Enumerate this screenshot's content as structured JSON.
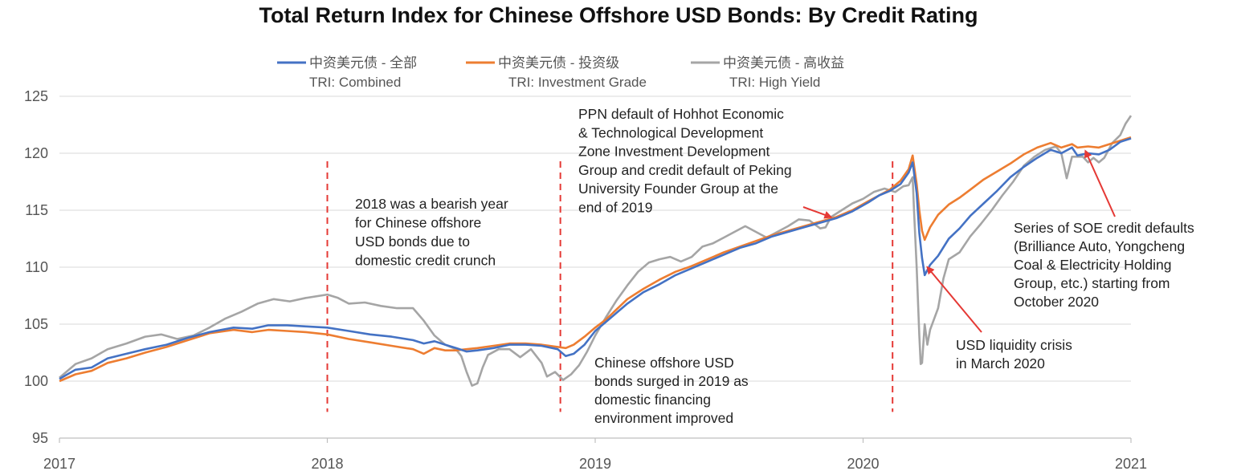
{
  "chart_data": {
    "type": "line",
    "title": "Total Return Index for Chinese Offshore USD Bonds: By Credit Rating",
    "xlabel": "",
    "ylabel": "",
    "xlim": [
      2017.0,
      2021.0
    ],
    "ylim": [
      95,
      125
    ],
    "yticks": [
      95,
      100,
      105,
      110,
      115,
      120,
      125
    ],
    "xticks": [
      {
        "value": 2017,
        "label": "2017"
      },
      {
        "value": 2018,
        "label": "2018"
      },
      {
        "value": 2019,
        "label": "2019"
      },
      {
        "value": 2020,
        "label": "2020"
      },
      {
        "value": 2021,
        "label": "2021"
      }
    ],
    "grid": "horizontal",
    "legend_position": "top",
    "series": [
      {
        "name": "中资美元债 - 全部",
        "name_en": "TRI: Combined",
        "color": "#4472C4",
        "points": [
          [
            2017.0,
            100.2
          ],
          [
            2017.06,
            101.0
          ],
          [
            2017.12,
            101.2
          ],
          [
            2017.18,
            102.0
          ],
          [
            2017.25,
            102.4
          ],
          [
            2017.32,
            102.8
          ],
          [
            2017.4,
            103.2
          ],
          [
            2017.48,
            103.8
          ],
          [
            2017.56,
            104.3
          ],
          [
            2017.65,
            104.7
          ],
          [
            2017.72,
            104.6
          ],
          [
            2017.78,
            104.9
          ],
          [
            2017.85,
            104.9
          ],
          [
            2017.92,
            104.8
          ],
          [
            2018.0,
            104.7
          ],
          [
            2018.08,
            104.4
          ],
          [
            2018.16,
            104.1
          ],
          [
            2018.24,
            103.9
          ],
          [
            2018.32,
            103.6
          ],
          [
            2018.36,
            103.3
          ],
          [
            2018.4,
            103.5
          ],
          [
            2018.44,
            103.2
          ],
          [
            2018.48,
            102.9
          ],
          [
            2018.52,
            102.6
          ],
          [
            2018.56,
            102.7
          ],
          [
            2018.62,
            102.9
          ],
          [
            2018.68,
            103.2
          ],
          [
            2018.74,
            103.2
          ],
          [
            2018.8,
            103.1
          ],
          [
            2018.86,
            102.8
          ],
          [
            2018.89,
            102.2
          ],
          [
            2018.92,
            102.4
          ],
          [
            2018.96,
            103.2
          ],
          [
            2019.0,
            104.4
          ],
          [
            2019.04,
            105.2
          ],
          [
            2019.08,
            106.0
          ],
          [
            2019.12,
            106.8
          ],
          [
            2019.18,
            107.8
          ],
          [
            2019.24,
            108.5
          ],
          [
            2019.3,
            109.3
          ],
          [
            2019.36,
            109.9
          ],
          [
            2019.42,
            110.5
          ],
          [
            2019.48,
            111.1
          ],
          [
            2019.54,
            111.7
          ],
          [
            2019.6,
            112.1
          ],
          [
            2019.66,
            112.7
          ],
          [
            2019.72,
            113.1
          ],
          [
            2019.78,
            113.5
          ],
          [
            2019.84,
            113.9
          ],
          [
            2019.9,
            114.3
          ],
          [
            2019.96,
            114.9
          ],
          [
            2020.02,
            115.7
          ],
          [
            2020.06,
            116.3
          ],
          [
            2020.1,
            116.7
          ],
          [
            2020.14,
            117.3
          ],
          [
            2020.17,
            118.3
          ],
          [
            2020.185,
            119.2
          ],
          [
            2020.2,
            116.5
          ],
          [
            2020.21,
            113.0
          ],
          [
            2020.22,
            110.8
          ],
          [
            2020.23,
            109.3
          ],
          [
            2020.25,
            110.2
          ],
          [
            2020.28,
            111.0
          ],
          [
            2020.32,
            112.5
          ],
          [
            2020.36,
            113.4
          ],
          [
            2020.4,
            114.5
          ],
          [
            2020.45,
            115.6
          ],
          [
            2020.5,
            116.7
          ],
          [
            2020.55,
            117.9
          ],
          [
            2020.6,
            118.8
          ],
          [
            2020.65,
            119.6
          ],
          [
            2020.7,
            120.3
          ],
          [
            2020.74,
            120.0
          ],
          [
            2020.78,
            120.5
          ],
          [
            2020.8,
            119.8
          ],
          [
            2020.84,
            120.0
          ],
          [
            2020.88,
            119.9
          ],
          [
            2020.92,
            120.3
          ],
          [
            2020.96,
            121.0
          ],
          [
            2021.0,
            121.3
          ]
        ]
      },
      {
        "name": "中资美元债 - 投资级",
        "name_en": "TRI: Investment Grade",
        "color": "#ED7D31",
        "points": [
          [
            2017.0,
            100.0
          ],
          [
            2017.06,
            100.6
          ],
          [
            2017.12,
            100.9
          ],
          [
            2017.18,
            101.6
          ],
          [
            2017.25,
            102.0
          ],
          [
            2017.32,
            102.5
          ],
          [
            2017.4,
            103.0
          ],
          [
            2017.48,
            103.6
          ],
          [
            2017.56,
            104.2
          ],
          [
            2017.65,
            104.5
          ],
          [
            2017.72,
            104.3
          ],
          [
            2017.78,
            104.5
          ],
          [
            2017.85,
            104.4
          ],
          [
            2017.92,
            104.3
          ],
          [
            2018.0,
            104.1
          ],
          [
            2018.08,
            103.7
          ],
          [
            2018.16,
            103.4
          ],
          [
            2018.24,
            103.1
          ],
          [
            2018.32,
            102.8
          ],
          [
            2018.36,
            102.4
          ],
          [
            2018.4,
            102.9
          ],
          [
            2018.44,
            102.7
          ],
          [
            2018.48,
            102.7
          ],
          [
            2018.52,
            102.8
          ],
          [
            2018.56,
            102.9
          ],
          [
            2018.62,
            103.1
          ],
          [
            2018.68,
            103.3
          ],
          [
            2018.74,
            103.3
          ],
          [
            2018.8,
            103.2
          ],
          [
            2018.86,
            103.0
          ],
          [
            2018.89,
            102.9
          ],
          [
            2018.92,
            103.2
          ],
          [
            2018.96,
            103.9
          ],
          [
            2019.0,
            104.7
          ],
          [
            2019.04,
            105.4
          ],
          [
            2019.08,
            106.3
          ],
          [
            2019.12,
            107.2
          ],
          [
            2019.18,
            108.1
          ],
          [
            2019.24,
            108.9
          ],
          [
            2019.3,
            109.6
          ],
          [
            2019.36,
            110.1
          ],
          [
            2019.42,
            110.7
          ],
          [
            2019.48,
            111.3
          ],
          [
            2019.54,
            111.8
          ],
          [
            2019.6,
            112.3
          ],
          [
            2019.66,
            112.8
          ],
          [
            2019.72,
            113.2
          ],
          [
            2019.78,
            113.6
          ],
          [
            2019.84,
            114.0
          ],
          [
            2019.9,
            114.4
          ],
          [
            2019.96,
            115.0
          ],
          [
            2020.02,
            115.8
          ],
          [
            2020.06,
            116.3
          ],
          [
            2020.1,
            116.8
          ],
          [
            2020.14,
            117.6
          ],
          [
            2020.17,
            118.6
          ],
          [
            2020.185,
            119.8
          ],
          [
            2020.2,
            117.3
          ],
          [
            2020.21,
            115.0
          ],
          [
            2020.22,
            113.2
          ],
          [
            2020.23,
            112.4
          ],
          [
            2020.25,
            113.5
          ],
          [
            2020.28,
            114.6
          ],
          [
            2020.32,
            115.5
          ],
          [
            2020.36,
            116.1
          ],
          [
            2020.4,
            116.8
          ],
          [
            2020.45,
            117.7
          ],
          [
            2020.5,
            118.4
          ],
          [
            2020.55,
            119.1
          ],
          [
            2020.6,
            119.9
          ],
          [
            2020.65,
            120.5
          ],
          [
            2020.7,
            120.9
          ],
          [
            2020.74,
            120.5
          ],
          [
            2020.78,
            120.8
          ],
          [
            2020.8,
            120.5
          ],
          [
            2020.84,
            120.6
          ],
          [
            2020.88,
            120.5
          ],
          [
            2020.92,
            120.8
          ],
          [
            2020.96,
            121.1
          ],
          [
            2021.0,
            121.4
          ]
        ]
      },
      {
        "name": "中资美元债 - 高收益",
        "name_en": "TRI: High Yield",
        "color": "#A5A5A5",
        "points": [
          [
            2017.0,
            100.3
          ],
          [
            2017.06,
            101.5
          ],
          [
            2017.12,
            102.0
          ],
          [
            2017.18,
            102.8
          ],
          [
            2017.25,
            103.3
          ],
          [
            2017.32,
            103.9
          ],
          [
            2017.38,
            104.1
          ],
          [
            2017.44,
            103.7
          ],
          [
            2017.5,
            104.0
          ],
          [
            2017.56,
            104.7
          ],
          [
            2017.62,
            105.5
          ],
          [
            2017.68,
            106.1
          ],
          [
            2017.74,
            106.8
          ],
          [
            2017.8,
            107.2
          ],
          [
            2017.86,
            107.0
          ],
          [
            2017.92,
            107.3
          ],
          [
            2018.0,
            107.6
          ],
          [
            2018.04,
            107.3
          ],
          [
            2018.08,
            106.8
          ],
          [
            2018.14,
            106.9
          ],
          [
            2018.2,
            106.6
          ],
          [
            2018.26,
            106.4
          ],
          [
            2018.32,
            106.4
          ],
          [
            2018.36,
            105.3
          ],
          [
            2018.4,
            104.0
          ],
          [
            2018.44,
            103.2
          ],
          [
            2018.48,
            102.8
          ],
          [
            2018.5,
            102.2
          ],
          [
            2018.52,
            100.8
          ],
          [
            2018.54,
            99.6
          ],
          [
            2018.56,
            99.8
          ],
          [
            2018.58,
            101.2
          ],
          [
            2018.6,
            102.3
          ],
          [
            2018.64,
            102.8
          ],
          [
            2018.68,
            102.8
          ],
          [
            2018.72,
            102.1
          ],
          [
            2018.76,
            102.8
          ],
          [
            2018.8,
            101.6
          ],
          [
            2018.82,
            100.4
          ],
          [
            2018.85,
            100.8
          ],
          [
            2018.88,
            100.1
          ],
          [
            2018.91,
            100.6
          ],
          [
            2018.94,
            101.4
          ],
          [
            2018.97,
            102.6
          ],
          [
            2019.0,
            104.0
          ],
          [
            2019.04,
            105.6
          ],
          [
            2019.08,
            107.1
          ],
          [
            2019.12,
            108.4
          ],
          [
            2019.16,
            109.6
          ],
          [
            2019.2,
            110.4
          ],
          [
            2019.24,
            110.7
          ],
          [
            2019.28,
            110.9
          ],
          [
            2019.32,
            110.5
          ],
          [
            2019.36,
            110.9
          ],
          [
            2019.4,
            111.8
          ],
          [
            2019.44,
            112.1
          ],
          [
            2019.48,
            112.6
          ],
          [
            2019.52,
            113.1
          ],
          [
            2019.56,
            113.6
          ],
          [
            2019.6,
            113.1
          ],
          [
            2019.64,
            112.6
          ],
          [
            2019.68,
            113.1
          ],
          [
            2019.72,
            113.6
          ],
          [
            2019.76,
            114.2
          ],
          [
            2019.8,
            114.1
          ],
          [
            2019.84,
            113.4
          ],
          [
            2019.86,
            113.5
          ],
          [
            2019.88,
            114.4
          ],
          [
            2019.92,
            115.0
          ],
          [
            2019.96,
            115.6
          ],
          [
            2020.0,
            116.0
          ],
          [
            2020.04,
            116.6
          ],
          [
            2020.08,
            116.9
          ],
          [
            2020.12,
            116.6
          ],
          [
            2020.15,
            117.1
          ],
          [
            2020.17,
            117.2
          ],
          [
            2020.185,
            117.9
          ],
          [
            2020.19,
            115.0
          ],
          [
            2020.2,
            110.0
          ],
          [
            2020.21,
            104.0
          ],
          [
            2020.215,
            101.5
          ],
          [
            2020.22,
            101.6
          ],
          [
            2020.23,
            105.0
          ],
          [
            2020.24,
            103.2
          ],
          [
            2020.25,
            104.5
          ],
          [
            2020.28,
            106.4
          ],
          [
            2020.3,
            109.0
          ],
          [
            2020.32,
            110.7
          ],
          [
            2020.36,
            111.3
          ],
          [
            2020.4,
            112.7
          ],
          [
            2020.44,
            113.8
          ],
          [
            2020.48,
            115.0
          ],
          [
            2020.52,
            116.3
          ],
          [
            2020.56,
            117.5
          ],
          [
            2020.6,
            118.9
          ],
          [
            2020.64,
            119.7
          ],
          [
            2020.68,
            120.3
          ],
          [
            2020.72,
            120.6
          ],
          [
            2020.74,
            120.0
          ],
          [
            2020.76,
            117.8
          ],
          [
            2020.78,
            119.7
          ],
          [
            2020.82,
            119.7
          ],
          [
            2020.84,
            119.2
          ],
          [
            2020.86,
            119.6
          ],
          [
            2020.88,
            119.2
          ],
          [
            2020.9,
            119.6
          ],
          [
            2020.93,
            120.9
          ],
          [
            2020.96,
            121.6
          ],
          [
            2020.98,
            122.6
          ],
          [
            2021.0,
            123.3
          ]
        ]
      }
    ],
    "event_lines": [
      2018.0,
      2018.87,
      2020.11
    ],
    "annotations": [
      {
        "id": "bearish",
        "lines": [
          "2018 was a bearish year",
          "for Chinese offshore",
          "USD bonds due to",
          "domestic credit crunch"
        ]
      },
      {
        "id": "surge",
        "lines": [
          "Chinese offshore USD",
          "bonds surged in 2019 as",
          "domestic financing",
          "environment improved"
        ]
      },
      {
        "id": "ppn",
        "lines": [
          "PPN default of Hohhot Economic",
          "& Technological Development",
          "Zone Investment Development",
          "Group and credit default of Peking",
          "University Founder Group at the",
          "end of 2019"
        ]
      },
      {
        "id": "liquidity",
        "lines": [
          "USD liquidity crisis",
          "in March 2020"
        ]
      },
      {
        "id": "soe",
        "lines": [
          "Series of SOE credit defaults",
          "(Brilliance Auto, Yongcheng",
          "Coal & Electricity Holding",
          "Group, etc.) starting from",
          "October 2020"
        ]
      }
    ],
    "arrows": [
      {
        "from": "ppn",
        "to_x": 2019.88,
        "to_y": 114.4
      },
      {
        "from": "liquidity",
        "to_x": 2020.24,
        "to_y": 110.0
      },
      {
        "from": "soe",
        "to_x": 2020.83,
        "to_y": 120.2
      }
    ],
    "annotation_color": "#E53935"
  }
}
